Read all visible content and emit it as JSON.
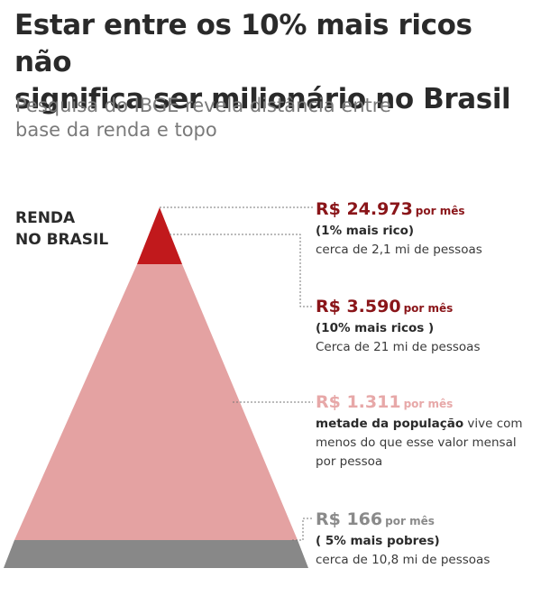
{
  "title": "Estar entre os 10% mais ricos não\nsignifica ser milionário no Brasil",
  "subtitle": "Pesquisa do IBGE revela distância entre\nbase da renda e topo",
  "axis_label": "RENDA\nNO BRASIL",
  "colors": {
    "top1": "#c1191c",
    "middle": "#e4a2a2",
    "base": "#888888",
    "connector": "#777777"
  },
  "tiers": {
    "top1": {
      "amount": "R$ 24.973",
      "per": "por mês",
      "group": "(1% mais rico)",
      "note": "cerca de 2,1 mi de pessoas",
      "color": "#8a1519"
    },
    "top10": {
      "amount": "R$ 3.590",
      "per": "por mês",
      "group": "(10% mais ricos )",
      "note": "Cerca de 21 mi de pessoas",
      "color": "#8a1519"
    },
    "median": {
      "amount": "R$ 1.311",
      "per": "por mês",
      "strong": "metade da população",
      "note": " vive com menos do que esse valor mensal por pessoa",
      "color": "#e7a8a8"
    },
    "bottom5": {
      "amount": "R$ 166",
      "per": "por mês",
      "group": "( 5% mais pobres)",
      "note": "cerca de 10,8 mi de pessoas",
      "color": "#8a8a8a"
    }
  }
}
